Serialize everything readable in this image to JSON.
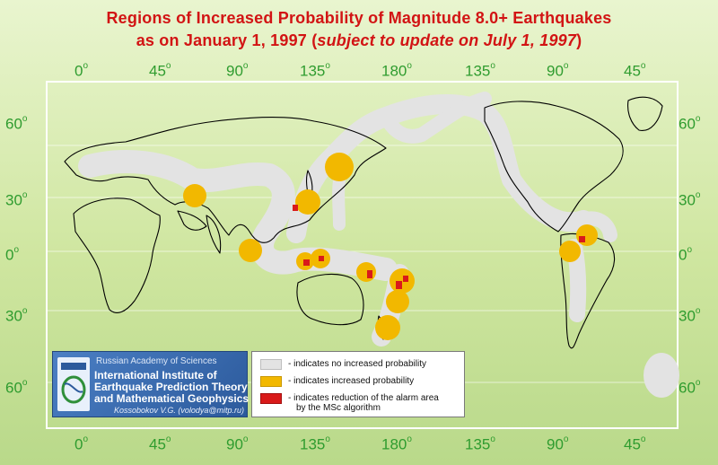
{
  "title": {
    "line1": "Regions of Increased Probability of Magnitude 8.0+ Earthquakes",
    "line2_prefix": "as on January 1, 1997 (",
    "line2_italic": "subject to update on July 1, 1997",
    "line2_suffix": ")"
  },
  "longitude_ticks": [
    "0",
    "45",
    "90",
    "135",
    "180",
    "135",
    "90",
    "45"
  ],
  "latitude_ticks": [
    "60",
    "30",
    "0",
    "30",
    "60"
  ],
  "degree_sign": "o",
  "institute": {
    "academy": "Russian Academy of Sciences",
    "name_line1": "International Institute of",
    "name_line2": "Earthquake Prediction Theory",
    "name_line3": "and Mathematical Geophysics",
    "author": "Kossobokov V.G. (volodya@mitp.ru)"
  },
  "legend": {
    "items": [
      {
        "label": "- indicates no increased probability",
        "color": "#e3e3e3"
      },
      {
        "label": "- indicates increased probability",
        "color": "#f2b800"
      },
      {
        "label_line1": "- indicates reduction of the alarm area",
        "label_line2": "by the MSc algorithm",
        "color": "#d91a1a"
      }
    ]
  },
  "colors": {
    "title": "#d21414",
    "ticks": "#2f9c2f",
    "no_increase": "#e3e3e3",
    "increased": "#f2b800",
    "reduction": "#d91a1a"
  }
}
